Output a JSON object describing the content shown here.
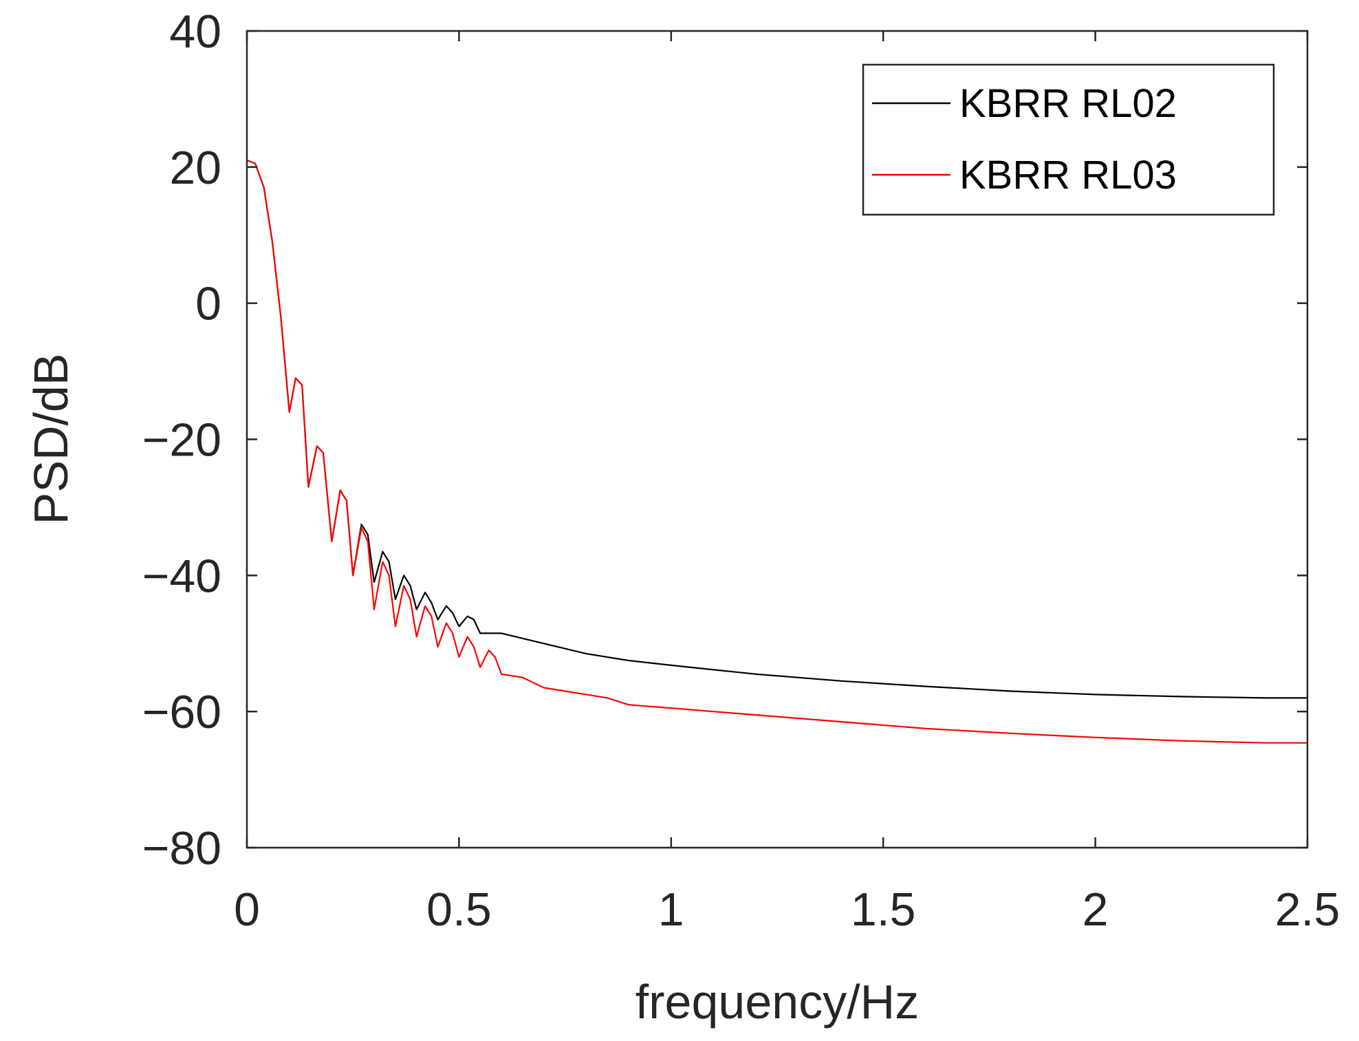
{
  "chart_data": {
    "type": "line",
    "xlabel": "frequency/Hz",
    "ylabel": "PSD/dB",
    "xlim": [
      0,
      2.5
    ],
    "ylim": [
      -80,
      40
    ],
    "xticks": [
      0,
      0.5,
      1,
      1.5,
      2,
      2.5
    ],
    "xtick_labels": [
      "0",
      "0.5",
      "1",
      "1.5",
      "2",
      "2.5"
    ],
    "yticks": [
      40,
      20,
      0,
      -20,
      -40,
      -60,
      -80
    ],
    "ytick_labels": [
      "40",
      "20",
      "0",
      "−20",
      "−40",
      "−60",
      "−80"
    ],
    "grid": false,
    "legend_position": "top-right",
    "series": [
      {
        "name": "KBRR RL02",
        "color": "#000000",
        "points": [
          [
            0,
            21
          ],
          [
            0.02,
            20.5
          ],
          [
            0.04,
            17
          ],
          [
            0.06,
            9
          ],
          [
            0.08,
            -2
          ],
          [
            0.1,
            -16
          ],
          [
            0.115,
            -11
          ],
          [
            0.13,
            -12
          ],
          [
            0.145,
            -27
          ],
          [
            0.165,
            -21
          ],
          [
            0.18,
            -22
          ],
          [
            0.2,
            -35
          ],
          [
            0.22,
            -27.5
          ],
          [
            0.235,
            -29
          ],
          [
            0.25,
            -40
          ],
          [
            0.27,
            -32.5
          ],
          [
            0.285,
            -34
          ],
          [
            0.3,
            -41
          ],
          [
            0.32,
            -36.5
          ],
          [
            0.335,
            -38
          ],
          [
            0.35,
            -43.5
          ],
          [
            0.37,
            -40
          ],
          [
            0.385,
            -41.5
          ],
          [
            0.4,
            -45
          ],
          [
            0.42,
            -42.5
          ],
          [
            0.435,
            -44
          ],
          [
            0.45,
            -46.5
          ],
          [
            0.47,
            -44.5
          ],
          [
            0.485,
            -45.5
          ],
          [
            0.5,
            -47.5
          ],
          [
            0.52,
            -46
          ],
          [
            0.535,
            -46.5
          ],
          [
            0.55,
            -48.5
          ],
          [
            0.6,
            -48.5
          ],
          [
            0.7,
            -50
          ],
          [
            0.8,
            -51.5
          ],
          [
            0.9,
            -52.5
          ],
          [
            1.0,
            -53.2
          ],
          [
            1.2,
            -54.5
          ],
          [
            1.4,
            -55.5
          ],
          [
            1.6,
            -56.3
          ],
          [
            1.8,
            -57
          ],
          [
            2.0,
            -57.5
          ],
          [
            2.2,
            -57.8
          ],
          [
            2.4,
            -58
          ],
          [
            2.5,
            -58
          ]
        ]
      },
      {
        "name": "KBRR RL03",
        "color": "#ff0000",
        "points": [
          [
            0,
            21
          ],
          [
            0.02,
            20.5
          ],
          [
            0.04,
            17
          ],
          [
            0.06,
            9
          ],
          [
            0.08,
            -2
          ],
          [
            0.1,
            -16
          ],
          [
            0.115,
            -11
          ],
          [
            0.13,
            -12
          ],
          [
            0.145,
            -27
          ],
          [
            0.165,
            -21
          ],
          [
            0.18,
            -22
          ],
          [
            0.2,
            -35
          ],
          [
            0.22,
            -27.5
          ],
          [
            0.235,
            -29
          ],
          [
            0.25,
            -40
          ],
          [
            0.27,
            -33
          ],
          [
            0.285,
            -35
          ],
          [
            0.3,
            -45
          ],
          [
            0.32,
            -38
          ],
          [
            0.335,
            -40
          ],
          [
            0.35,
            -47.5
          ],
          [
            0.37,
            -41.5
          ],
          [
            0.385,
            -43.5
          ],
          [
            0.4,
            -49
          ],
          [
            0.42,
            -44.5
          ],
          [
            0.435,
            -46
          ],
          [
            0.45,
            -50.5
          ],
          [
            0.47,
            -47
          ],
          [
            0.485,
            -48.5
          ],
          [
            0.5,
            -52
          ],
          [
            0.52,
            -49
          ],
          [
            0.535,
            -50.5
          ],
          [
            0.55,
            -53.5
          ],
          [
            0.57,
            -51
          ],
          [
            0.585,
            -52
          ],
          [
            0.6,
            -54.5
          ],
          [
            0.65,
            -55
          ],
          [
            0.7,
            -56.5
          ],
          [
            0.75,
            -57
          ],
          [
            0.8,
            -57.5
          ],
          [
            0.85,
            -58
          ],
          [
            0.9,
            -59
          ],
          [
            1.0,
            -59.5
          ],
          [
            1.2,
            -60.5
          ],
          [
            1.4,
            -61.5
          ],
          [
            1.6,
            -62.5
          ],
          [
            1.8,
            -63.2
          ],
          [
            2.0,
            -63.8
          ],
          [
            2.2,
            -64.3
          ],
          [
            2.4,
            -64.6
          ],
          [
            2.5,
            -64.6
          ]
        ]
      }
    ]
  }
}
